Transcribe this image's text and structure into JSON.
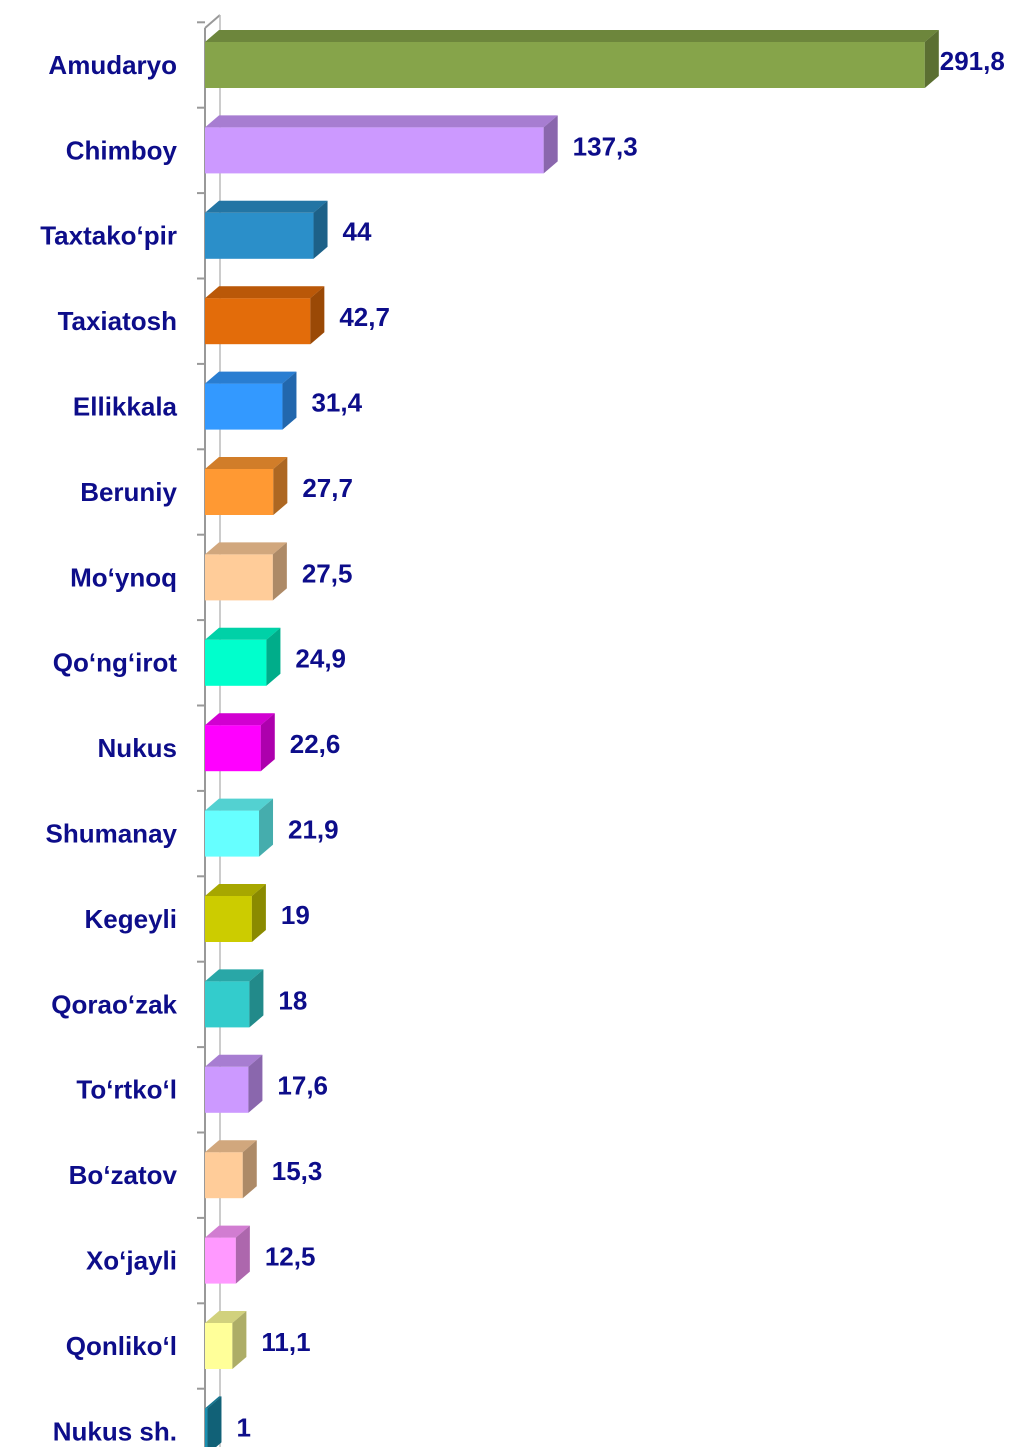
{
  "chart_data": {
    "type": "bar",
    "orientation": "horizontal",
    "categories": [
      "Amudaryo",
      "Chimboy",
      "Taxtako‘pir",
      "Taxiatosh",
      "Ellikkala",
      "Beruniy",
      "Mo‘ynoq",
      "Qo‘ng‘irot",
      "Nukus",
      "Shumanay",
      "Kegeyli",
      "Qorao‘zak",
      "To‘rtko‘l",
      "Bo‘zatov",
      "Xo‘jayli",
      "Qonliko‘l",
      "Nukus sh."
    ],
    "values": [
      291.8,
      137.3,
      44,
      42.7,
      31.4,
      27.7,
      27.5,
      24.9,
      22.6,
      21.9,
      19,
      18,
      17.6,
      15.3,
      12.5,
      11.1,
      1
    ],
    "value_labels": [
      "291,8",
      "137,3",
      "44",
      "42,7",
      "31,4",
      "27,7",
      "27,5",
      "24,9",
      "22,6",
      "21,9",
      "19",
      "18",
      "17,6",
      "15,3",
      "12,5",
      "11,1",
      "1"
    ],
    "colors": [
      "#86a44a",
      "#cc99ff",
      "#2b8fc9",
      "#e36c0a",
      "#3399ff",
      "#ff9933",
      "#ffcc99",
      "#00ffcc",
      "#ff00ff",
      "#66ffff",
      "#cccc00",
      "#33cccc",
      "#cc99ff",
      "#ffcc99",
      "#ff99ff",
      "#ffff99",
      "#1a8fb0"
    ],
    "xlim": [
      0,
      300
    ]
  }
}
